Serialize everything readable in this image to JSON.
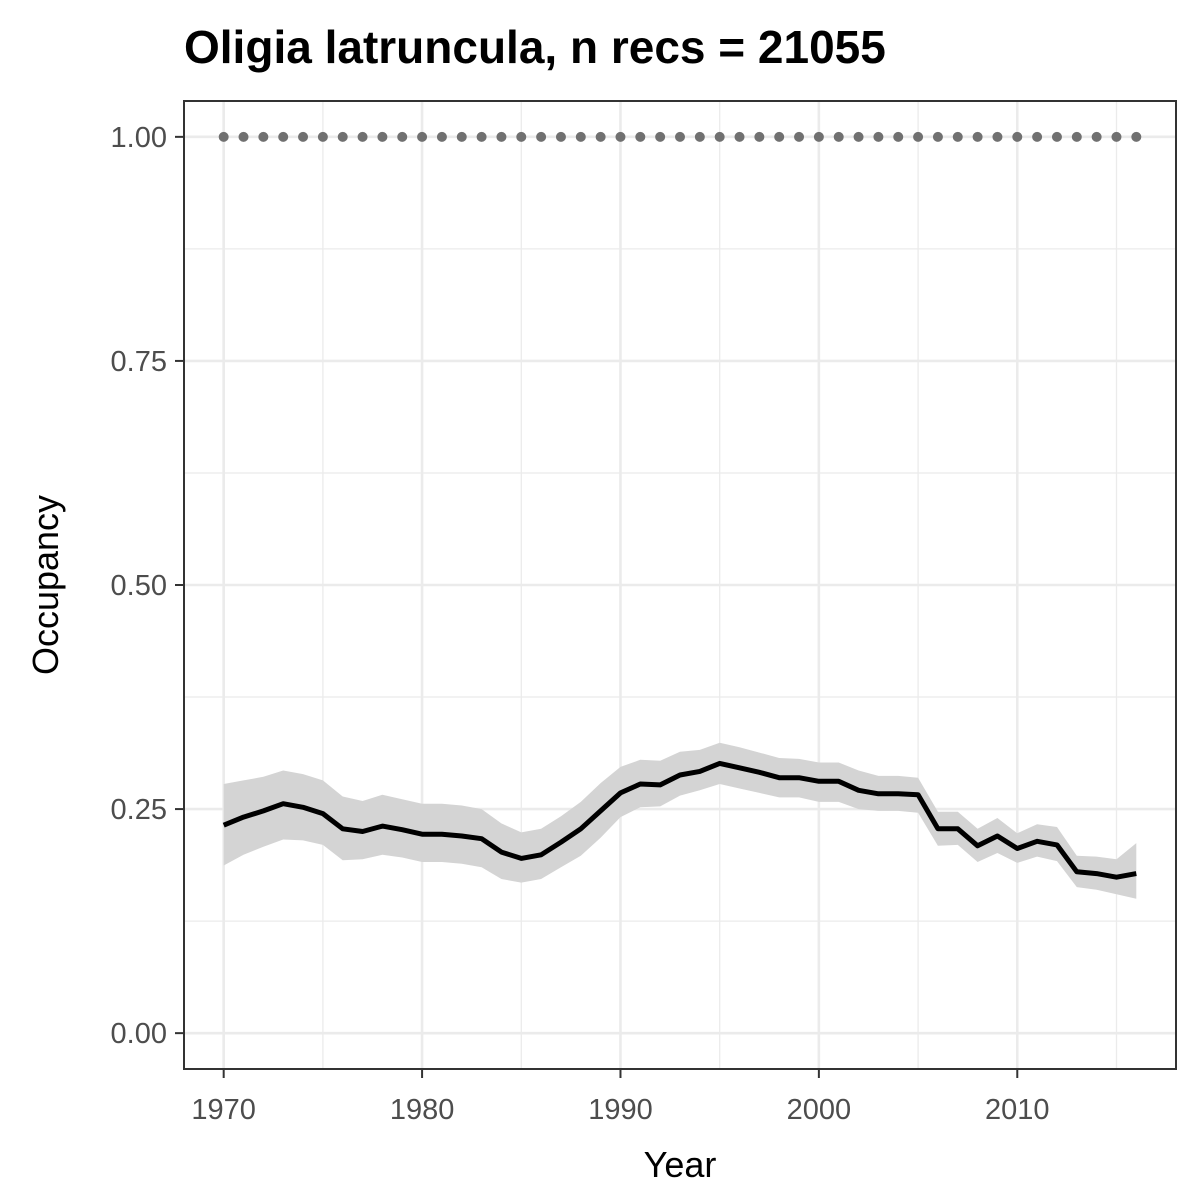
{
  "chart_data": {
    "type": "line",
    "title": "Oligia latruncula, n recs = 21055",
    "xlabel": "Year",
    "ylabel": "Occupancy",
    "xlim": [
      1968,
      2018
    ],
    "ylim": [
      -0.04,
      1.04
    ],
    "x_ticks": [
      1970,
      1980,
      1990,
      2000,
      2010
    ],
    "x_tick_labels": [
      "1970",
      "1980",
      "1990",
      "2000",
      "2010"
    ],
    "y_ticks": [
      0.0,
      0.25,
      0.5,
      0.75,
      1.0
    ],
    "y_tick_labels": [
      "0.00",
      "0.25",
      "0.50",
      "0.75",
      "1.00"
    ],
    "grid": true,
    "colors": {
      "line": "#000000",
      "band": "#d4d4d4",
      "dots": "#707070",
      "grid": "#ebebeb",
      "panel_border": "#333333"
    },
    "x": [
      1970,
      1971,
      1972,
      1973,
      1974,
      1975,
      1976,
      1977,
      1978,
      1979,
      1980,
      1981,
      1982,
      1983,
      1984,
      1985,
      1986,
      1987,
      1988,
      1989,
      1990,
      1991,
      1992,
      1993,
      1994,
      1995,
      1996,
      1997,
      1998,
      1999,
      2000,
      2001,
      2002,
      2003,
      2004,
      2005,
      2006,
      2007,
      2008,
      2009,
      2010,
      2011,
      2012,
      2013,
      2014,
      2015,
      2016
    ],
    "series": [
      {
        "values": [
          0.232,
          0.241,
          0.248,
          0.256,
          0.252,
          0.245,
          0.228,
          0.225,
          0.231,
          0.227,
          0.222,
          0.222,
          0.22,
          0.217,
          0.202,
          0.195,
          0.199,
          0.213,
          0.228,
          0.248,
          0.268,
          0.278,
          0.277,
          0.288,
          0.292,
          0.301,
          0.296,
          0.291,
          0.285,
          0.285,
          0.281,
          0.281,
          0.271,
          0.267,
          0.267,
          0.266,
          0.228,
          0.228,
          0.209,
          0.22,
          0.206,
          0.214,
          0.21,
          0.18,
          0.178,
          0.174,
          0.178
        ],
        "lower": [
          0.187,
          0.199,
          0.208,
          0.216,
          0.215,
          0.21,
          0.193,
          0.194,
          0.199,
          0.196,
          0.191,
          0.191,
          0.189,
          0.185,
          0.172,
          0.168,
          0.172,
          0.185,
          0.198,
          0.218,
          0.241,
          0.252,
          0.253,
          0.265,
          0.271,
          0.278,
          0.273,
          0.268,
          0.263,
          0.263,
          0.258,
          0.258,
          0.25,
          0.248,
          0.248,
          0.246,
          0.209,
          0.21,
          0.191,
          0.201,
          0.19,
          0.197,
          0.192,
          0.163,
          0.16,
          0.155,
          0.15
        ],
        "upper": [
          0.278,
          0.282,
          0.286,
          0.293,
          0.289,
          0.282,
          0.264,
          0.259,
          0.266,
          0.261,
          0.256,
          0.256,
          0.254,
          0.25,
          0.234,
          0.224,
          0.228,
          0.242,
          0.258,
          0.279,
          0.297,
          0.305,
          0.304,
          0.314,
          0.316,
          0.324,
          0.319,
          0.313,
          0.307,
          0.306,
          0.302,
          0.302,
          0.293,
          0.287,
          0.287,
          0.285,
          0.247,
          0.247,
          0.228,
          0.24,
          0.223,
          0.233,
          0.23,
          0.198,
          0.197,
          0.194,
          0.212
        ]
      }
    ],
    "reference_points": {
      "y": 1.0,
      "x": [
        1970,
        1971,
        1972,
        1973,
        1974,
        1975,
        1976,
        1977,
        1978,
        1979,
        1980,
        1981,
        1982,
        1983,
        1984,
        1985,
        1986,
        1987,
        1988,
        1989,
        1990,
        1991,
        1992,
        1993,
        1994,
        1995,
        1996,
        1997,
        1998,
        1999,
        2000,
        2001,
        2002,
        2003,
        2004,
        2005,
        2006,
        2007,
        2008,
        2009,
        2010,
        2011,
        2012,
        2013,
        2014,
        2015,
        2016
      ]
    }
  }
}
